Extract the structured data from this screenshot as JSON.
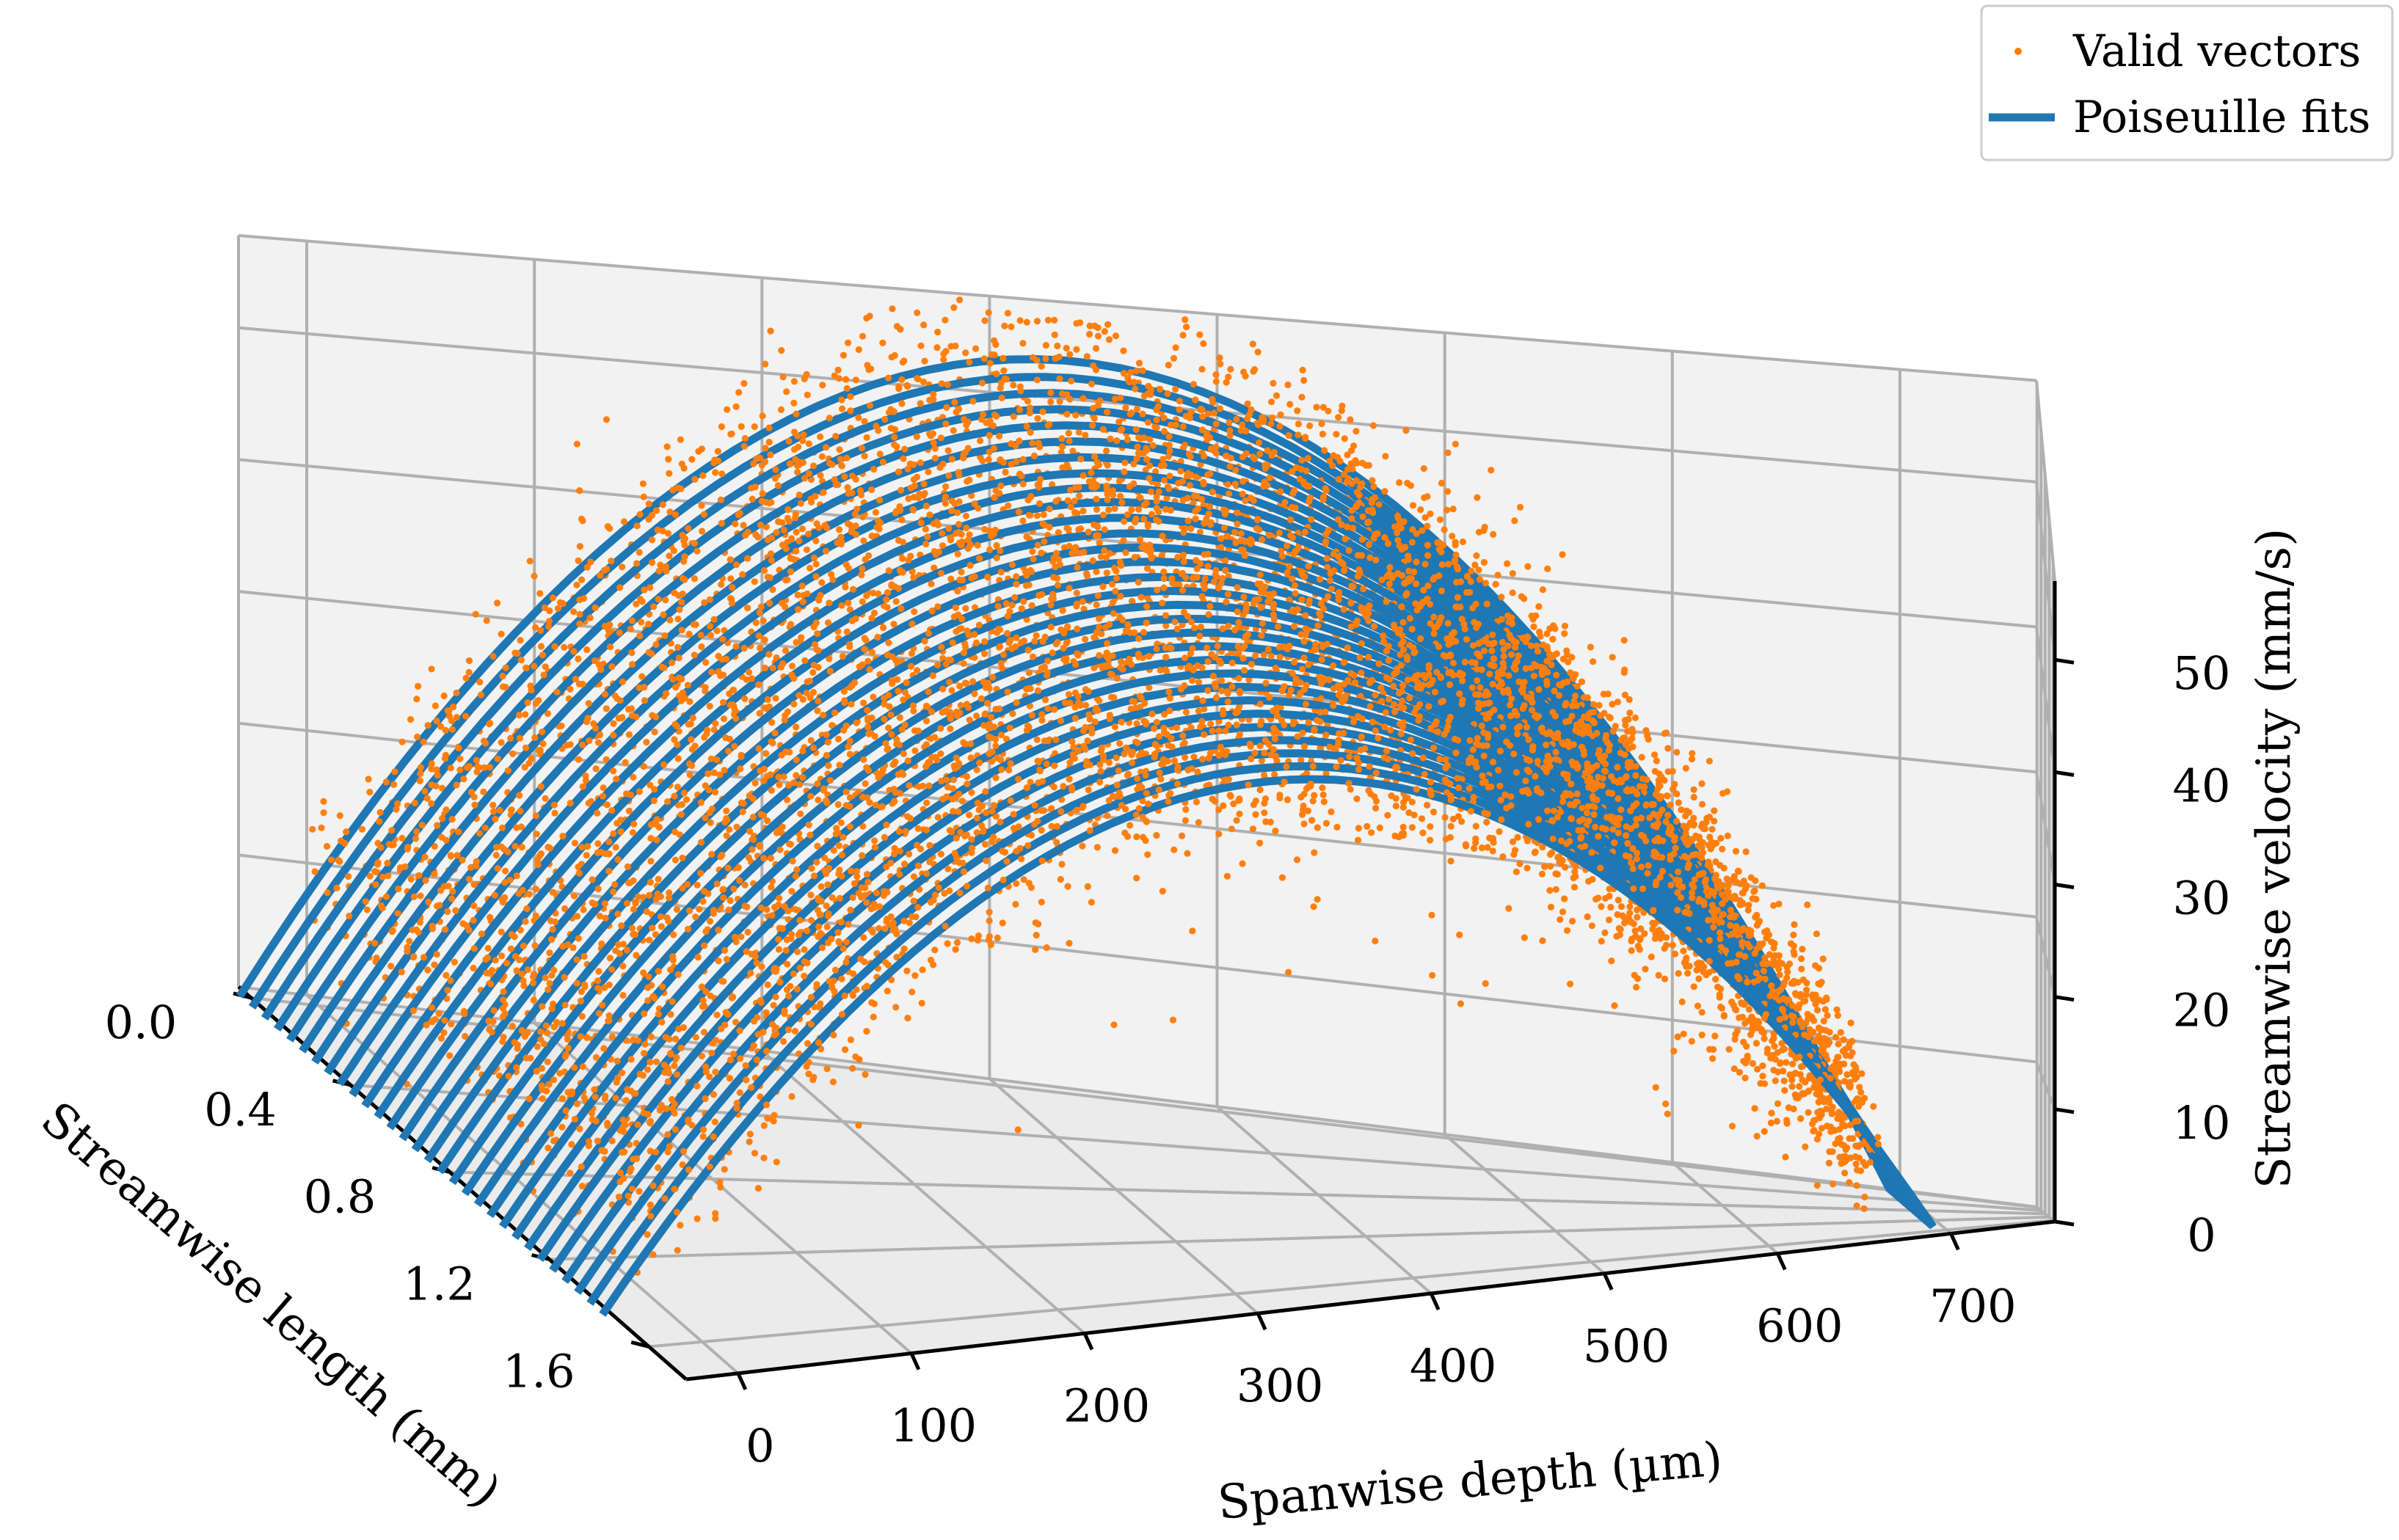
{
  "chart_data": {
    "type": "scatter",
    "subtype": "3d-scatter-with-line-fits",
    "title": "",
    "axes": {
      "x": {
        "label": "Spanwise depth (µm)",
        "ticks": [
          "0",
          "100",
          "200",
          "300",
          "400",
          "500",
          "600",
          "700"
        ],
        "tick_values": [
          0,
          100,
          200,
          300,
          400,
          500,
          600,
          700
        ],
        "range": [
          -30,
          760
        ]
      },
      "y": {
        "label": "Streamwise length (mm)",
        "ticks": [
          "0.0",
          "0.4",
          "0.8",
          "1.2",
          "1.6"
        ],
        "tick_values": [
          0.0,
          0.4,
          0.8,
          1.2,
          1.6
        ],
        "range": [
          -0.05,
          1.75
        ]
      },
      "z": {
        "label": "Streamwise velocity (mm/s)",
        "ticks": [
          "0",
          "10",
          "20",
          "30",
          "40",
          "50"
        ],
        "tick_values": [
          0,
          10,
          20,
          30,
          40,
          50
        ],
        "range": [
          0,
          57
        ]
      }
    },
    "grid": true,
    "legend": {
      "placement": "top-right",
      "entries": [
        {
          "label": "Valid vectors",
          "marker": "dot",
          "color": "#ff7f0e"
        },
        {
          "label": "Poiseuille fits",
          "marker": "line",
          "color": "#1f77b4"
        }
      ]
    },
    "series": [
      {
        "name": "Valid vectors",
        "kind": "scatter",
        "color": "#ff7f0e",
        "model": "noisy parabolic profile u = Umax * (1 - ((x - 330)/365)^2), scattered around fits",
        "approx_points": 8000,
        "noise_sd_mm_s": 3.5
      },
      {
        "name": "Poiseuille fits",
        "kind": "line",
        "color": "#1f77b4",
        "model": "parabola u(x) = Umax * (1 - ((x - 330)/365)^2) at each streamwise position",
        "x_center_um": 330,
        "half_width_um": 365,
        "profiles": [
          {
            "y": 0.0,
            "umax": 53.5
          },
          {
            "y": 0.05,
            "umax": 53.0
          },
          {
            "y": 0.1,
            "umax": 52.6
          },
          {
            "y": 0.15,
            "umax": 52.2
          },
          {
            "y": 0.2,
            "umax": 51.8
          },
          {
            "y": 0.25,
            "umax": 51.4
          },
          {
            "y": 0.3,
            "umax": 51.0
          },
          {
            "y": 0.35,
            "umax": 50.6
          },
          {
            "y": 0.4,
            "umax": 50.3
          },
          {
            "y": 0.45,
            "umax": 50.0
          },
          {
            "y": 0.5,
            "umax": 49.6
          },
          {
            "y": 0.55,
            "umax": 49.2
          },
          {
            "y": 0.6,
            "umax": 48.9
          },
          {
            "y": 0.65,
            "umax": 48.6
          },
          {
            "y": 0.7,
            "umax": 48.2
          },
          {
            "y": 0.75,
            "umax": 47.9
          },
          {
            "y": 0.8,
            "umax": 47.6
          },
          {
            "y": 0.85,
            "umax": 47.3
          },
          {
            "y": 0.9,
            "umax": 47.0
          },
          {
            "y": 0.95,
            "umax": 46.7
          },
          {
            "y": 1.0,
            "umax": 46.4
          },
          {
            "y": 1.05,
            "umax": 46.1
          },
          {
            "y": 1.1,
            "umax": 45.8
          },
          {
            "y": 1.15,
            "umax": 45.5
          },
          {
            "y": 1.2,
            "umax": 45.2
          },
          {
            "y": 1.25,
            "umax": 44.9
          },
          {
            "y": 1.3,
            "umax": 44.6
          },
          {
            "y": 1.35,
            "umax": 44.3
          },
          {
            "y": 1.4,
            "umax": 44.0
          },
          {
            "y": 1.45,
            "umax": 43.7
          }
        ]
      }
    ]
  },
  "view": {
    "elevation_deg": 20,
    "azimuth_deg": -60
  }
}
